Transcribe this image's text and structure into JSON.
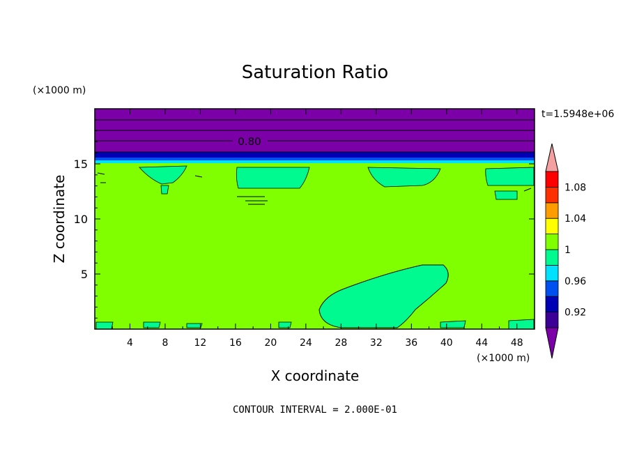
{
  "chart_data": {
    "type": "heatmap",
    "title": "Saturation Ratio",
    "xlabel": "X coordinate",
    "ylabel": "Z coordinate",
    "x_unit": "(×1000 m)",
    "y_unit": "(×1000 m)",
    "time_label": "t=1.5948e+06",
    "footer": "CONTOUR INTERVAL = 2.000E-01",
    "xlim": [
      0,
      50
    ],
    "ylim": [
      0,
      20
    ],
    "x_ticks": [
      "4",
      "8",
      "12",
      "16",
      "20",
      "24",
      "28",
      "32",
      "36",
      "40",
      "44",
      "48"
    ],
    "y_ticks": [
      "5",
      "10",
      "15"
    ],
    "contour_label": "0.80",
    "colorbar": {
      "labels": [
        "0.92",
        "0.96",
        "1",
        "1.04",
        "1.08"
      ],
      "bands": [
        {
          "max": 0.9,
          "color": "#7c00a8"
        },
        {
          "max": 0.92,
          "color": "#3c0096"
        },
        {
          "max": 0.94,
          "color": "#0000b4"
        },
        {
          "max": 0.96,
          "color": "#0050f0"
        },
        {
          "max": 0.98,
          "color": "#00e0ff"
        },
        {
          "max": 1.0,
          "color": "#00fa90"
        },
        {
          "max": 1.02,
          "color": "#80ff00"
        },
        {
          "max": 1.04,
          "color": "#ffff00"
        },
        {
          "max": 1.06,
          "color": "#ff9c00"
        },
        {
          "max": 1.08,
          "color": "#ff3000"
        },
        {
          "max": 1.1,
          "color": "#ff0000"
        },
        {
          "max": 1.12,
          "color": "#f5a0a0"
        }
      ]
    }
  }
}
